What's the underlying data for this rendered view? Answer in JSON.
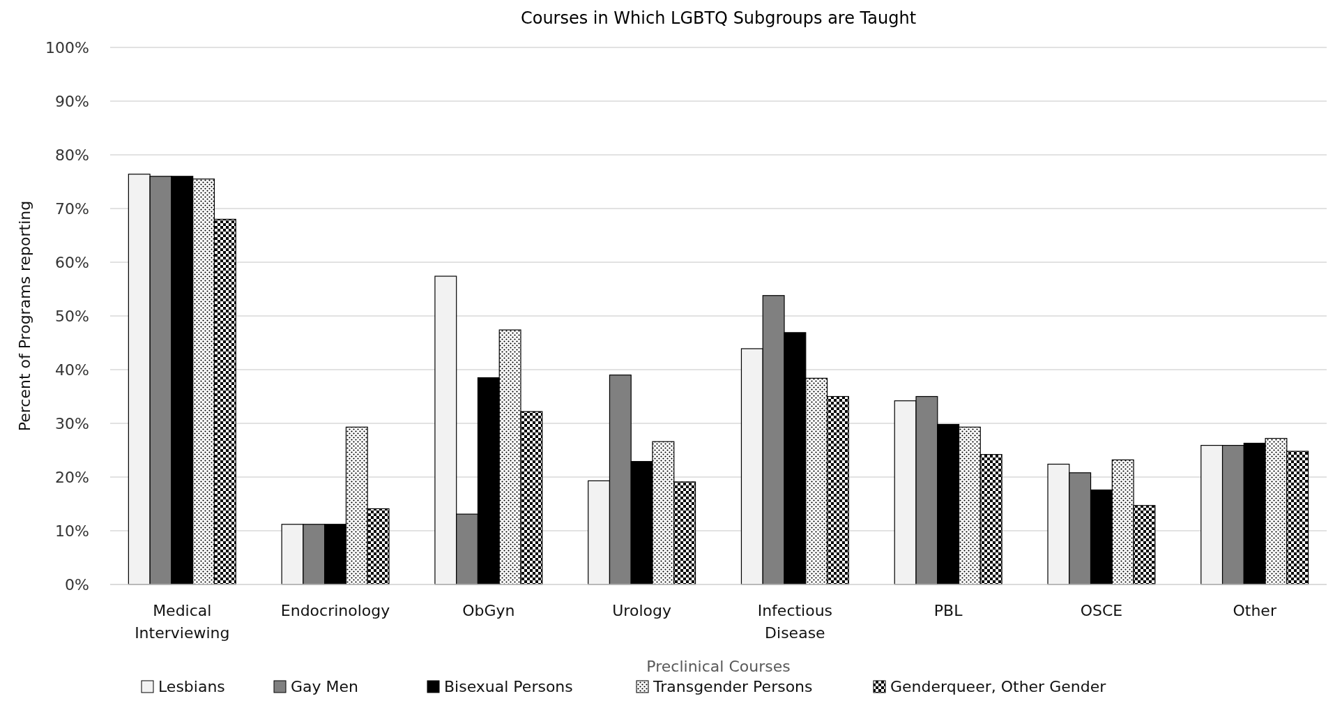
{
  "chart_data": {
    "type": "bar",
    "title": "Courses in Which LGBTQ Subgroups are Taught",
    "xlabel": "Preclinical Courses",
    "ylabel": "Percent of Programs reporting",
    "categories": [
      "Medical Interviewing",
      "Endocrinology",
      "ObGyn",
      "Urology",
      "Infectious Disease",
      "PBL",
      "OSCE",
      "Other"
    ],
    "series": [
      {
        "name": "Lesbians",
        "color": "#f2f2f2",
        "values": [
          76.4,
          11.2,
          57.4,
          19.3,
          43.9,
          34.2,
          22.4,
          25.9
        ]
      },
      {
        "name": "Gay Men",
        "color": "#808080",
        "values": [
          76.0,
          11.2,
          13.1,
          39.0,
          53.8,
          35.0,
          20.8,
          25.9
        ]
      },
      {
        "name": "Bisexual Persons",
        "color": "#000000",
        "values": [
          76.0,
          11.2,
          38.5,
          22.9,
          46.9,
          29.8,
          17.6,
          26.3
        ]
      },
      {
        "name": "Transgender Persons",
        "color": "#000000",
        "values": [
          75.5,
          29.3,
          47.4,
          26.6,
          38.4,
          29.3,
          23.2,
          27.2
        ]
      },
      {
        "name": "Genderqueer, Other Gender",
        "color": "#000000",
        "values": [
          68.0,
          14.1,
          32.2,
          19.1,
          35.0,
          24.2,
          14.7,
          24.8
        ]
      }
    ],
    "ylim": [
      0,
      100
    ],
    "yticks": [
      {
        "value": 0,
        "label": "0%"
      },
      {
        "value": 10,
        "label": "10%"
      },
      {
        "value": 20,
        "label": "20%"
      },
      {
        "value": 30,
        "label": "30%"
      },
      {
        "value": 40,
        "label": "40%"
      },
      {
        "value": 50,
        "label": "50%"
      },
      {
        "value": 60,
        "label": "60%"
      },
      {
        "value": 70,
        "label": "70%"
      },
      {
        "value": 80,
        "label": "80%"
      },
      {
        "value": 90,
        "label": "90%"
      },
      {
        "value": 100,
        "label": "100%"
      }
    ],
    "grid": "y",
    "legend": "bottom"
  }
}
